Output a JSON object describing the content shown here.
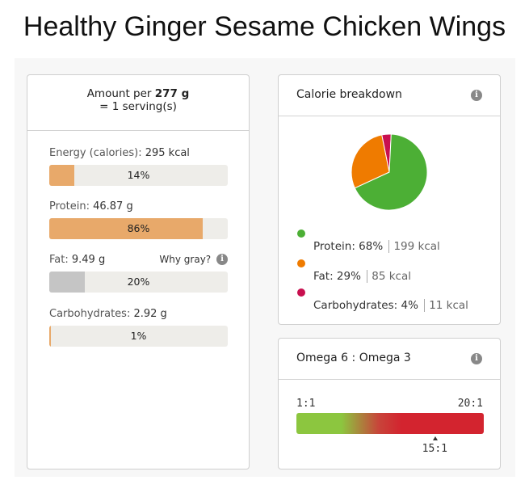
{
  "title": "Healthy Ginger Sesame Chicken Wings",
  "serving": {
    "prefix": "Amount per",
    "amount": "277 g",
    "line2": "= 1 serving(s)"
  },
  "nutrients": [
    {
      "name": "Energy (calories):",
      "value": "295 kcal",
      "percent_label": "14%",
      "fill_fraction": 0.14,
      "color": "#e8a96a"
    },
    {
      "name": "Protein:",
      "value": "46.87 g",
      "percent_label": "86%",
      "fill_fraction": 0.86,
      "color": "#e8a96a"
    },
    {
      "name": "Fat:",
      "value": "9.49 g",
      "percent_label": "20%",
      "fill_fraction": 0.2,
      "color": "#c5c5c5"
    },
    {
      "name": "Carbohydrates:",
      "value": "2.92 g",
      "percent_label": "1%",
      "fill_fraction": 0.01,
      "color": "#e8a96a"
    }
  ],
  "why_gray": {
    "label": "Why gray?",
    "icon": "info-icon"
  },
  "calorie_breakdown": {
    "title": "Calorie breakdown",
    "icon": "info-icon",
    "items": [
      {
        "label": "Protein: 68%",
        "kcal": "199 kcal",
        "color": "#4caf35"
      },
      {
        "label": "Fat: 29%",
        "kcal": "85 kcal",
        "color": "#ef7b00"
      },
      {
        "label": "Carbohydrates: 4%",
        "kcal": "11 kcal",
        "color": "#c8104f"
      }
    ]
  },
  "chart_data": {
    "type": "pie",
    "categories": [
      "Protein",
      "Fat",
      "Carbohydrates"
    ],
    "values": [
      68,
      29,
      4
    ],
    "colors": [
      "#4caf35",
      "#ef7b00",
      "#c8104f"
    ]
  },
  "omega": {
    "title": "Omega 6 : Omega 3",
    "icon": "info-icon",
    "min_label": "1:1",
    "max_label": "20:1",
    "value_label": "15:1",
    "value_fraction": 0.74
  }
}
